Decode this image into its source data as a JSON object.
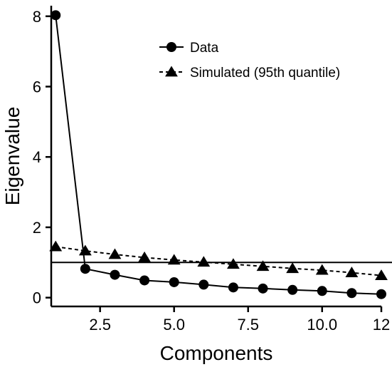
{
  "chart_data": {
    "type": "line",
    "title": "",
    "xlabel": "Components",
    "ylabel": "Eigenvalue",
    "xlim": [
      0.85,
      12.0
    ],
    "ylim": [
      -0.25,
      8.3
    ],
    "xticks": [
      2.5,
      5.0,
      7.5,
      10.0,
      12.0
    ],
    "xtick_labels": [
      "2.5",
      "5.0",
      "7.5",
      "10.0",
      "12"
    ],
    "yticks": [
      0,
      2,
      4,
      6,
      8
    ],
    "ytick_labels": [
      "0",
      "2",
      "4",
      "6",
      "8"
    ],
    "reference_line_y": 1,
    "legend_position": "top-right",
    "series": [
      {
        "name": "Data",
        "marker": "circle",
        "line_style": "solid",
        "x": [
          1,
          2,
          3,
          4,
          5,
          6,
          7,
          8,
          9,
          10,
          11,
          12
        ],
        "y": [
          8.03,
          0.82,
          0.65,
          0.49,
          0.44,
          0.37,
          0.29,
          0.26,
          0.22,
          0.19,
          0.13,
          0.1
        ]
      },
      {
        "name": "Simulated (95th quantile)",
        "marker": "triangle",
        "line_style": "dashed",
        "x": [
          1,
          2,
          3,
          4,
          5,
          6,
          7,
          8,
          9,
          10,
          11,
          12
        ],
        "y": [
          1.45,
          1.33,
          1.23,
          1.14,
          1.07,
          1.01,
          0.95,
          0.89,
          0.83,
          0.78,
          0.71,
          0.63
        ]
      }
    ],
    "colors": {
      "line": "#000000",
      "background": "#ffffff"
    }
  }
}
